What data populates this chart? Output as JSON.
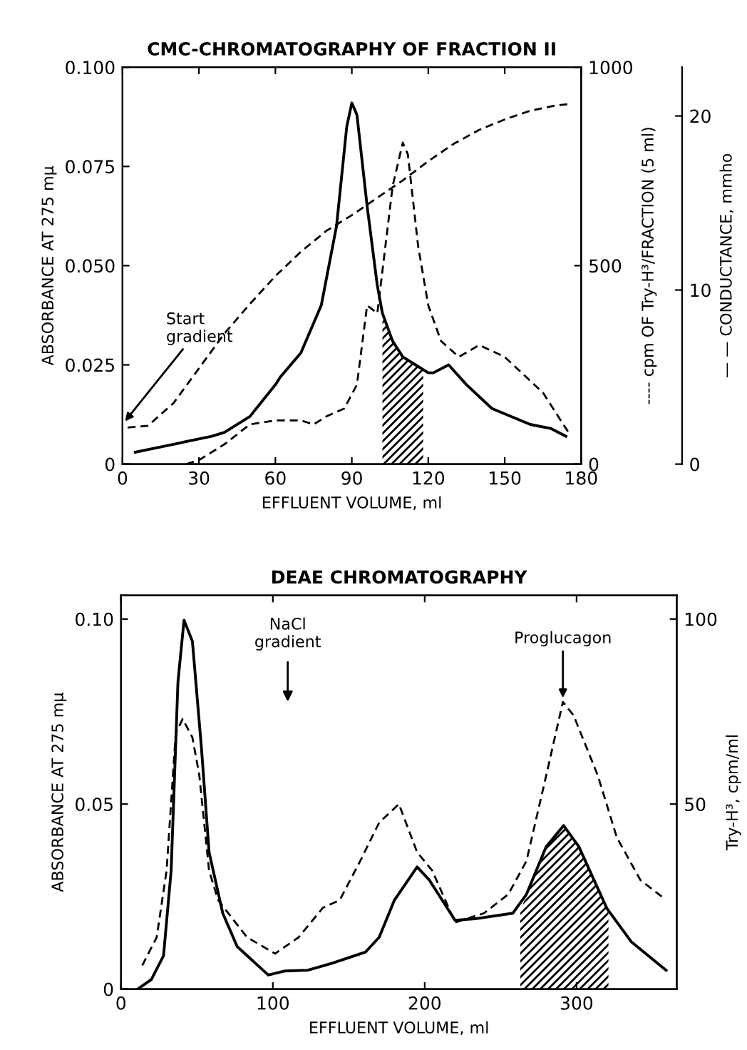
{
  "chart_data": [
    {
      "type": "line",
      "title": "CMC-CHROMATOGRAPHY OF FRACTION II",
      "xlabel": "EFFLUENT VOLUME, ml",
      "ylabel": "ABSORBANCE AT 275 mμ",
      "y2label": "---- cpm OF Try-H³/FRACTION (5 ml)",
      "y3label": "— — CONDUCTANCE, mmho",
      "xlim": [
        0,
        180
      ],
      "xticks": [
        0,
        30,
        60,
        90,
        120,
        150,
        180
      ],
      "ylim": [
        0,
        0.1
      ],
      "yticks": [
        0,
        {
          "value": 0.025,
          "label": "0.025"
        },
        {
          "value": 0.05,
          "label": "0.050"
        },
        {
          "value": 0.075,
          "label": "0.075"
        },
        {
          "value": 0.1,
          "label": "0.100"
        }
      ],
      "y2lim": [
        0,
        1000
      ],
      "y2ticks": [
        0,
        500,
        1000
      ],
      "y3lim": [
        0,
        22.8
      ],
      "y3ticks": [
        0,
        10,
        20
      ],
      "series": [
        {
          "color": "#000000",
          "line_style": "solid",
          "x": [
            5,
            20,
            35,
            40,
            50,
            60,
            62,
            70,
            78,
            84,
            88,
            90,
            92,
            96,
            100,
            102,
            106,
            110,
            115,
            120,
            122,
            128,
            135,
            145,
            160,
            168,
            174
          ],
          "values": [
            0.003,
            0.005,
            0.007,
            0.008,
            0.012,
            0.02,
            0.022,
            0.028,
            0.04,
            0.06,
            0.085,
            0.091,
            0.088,
            0.065,
            0.045,
            0.038,
            0.031,
            0.027,
            0.025,
            0.023,
            0.023,
            0.025,
            0.02,
            0.014,
            0.01,
            0.009,
            0.007
          ]
        },
        {
          "color": "#000000",
          "line_style": "dashed",
          "axis": "y2",
          "x": [
            25,
            30,
            40,
            50,
            60,
            70,
            75,
            80,
            87,
            92,
            96,
            100,
            106,
            110,
            112,
            116,
            120,
            125,
            132,
            140,
            150,
            165,
            175
          ],
          "values": [
            0,
            10,
            50,
            100,
            110,
            110,
            100,
            120,
            140,
            200,
            400,
            380,
            700,
            810,
            780,
            550,
            400,
            310,
            270,
            300,
            270,
            180,
            80
          ]
        },
        {
          "color": "#000000",
          "line_style": "dashed",
          "axis": "y3",
          "x": [
            2,
            10,
            20,
            30,
            40,
            50,
            60,
            70,
            80,
            90,
            100,
            110,
            120,
            130,
            140,
            150,
            160,
            170,
            176
          ],
          "values": [
            2.1,
            2.2,
            3.5,
            5.5,
            7.5,
            9.2,
            10.8,
            12.2,
            13.4,
            14.3,
            15.3,
            16.3,
            17.4,
            18.4,
            19.2,
            19.8,
            20.3,
            20.6,
            20.7
          ]
        },
        {
          "type": "area",
          "color": "#000000",
          "x": [
            102,
            106,
            110,
            115,
            118
          ],
          "values": [
            0.038,
            0.031,
            0.027,
            0.025,
            0.0237
          ]
        }
      ],
      "annotations": [
        {
          "text": "Start\ngradient",
          "x": 0,
          "y": 0.01
        }
      ]
    },
    {
      "type": "line",
      "title": "DEAE CHROMATOGRAPHY",
      "xlabel": "EFFLUENT VOLUME, ml",
      "ylabel": "ABSORBANCE AT 275 mμ",
      "y2label": "Try-H³, cpm/ml",
      "xlim": [
        0,
        366
      ],
      "xticks": [
        0,
        100,
        200,
        300
      ],
      "ylim": [
        0,
        0.1064
      ],
      "yticks": [
        0,
        0.05,
        {
          "value": 0.1,
          "label": "0.10"
        }
      ],
      "y2lim": [
        0,
        106.4
      ],
      "y2ticks": [
        50,
        100
      ],
      "series": [
        {
          "color": "#000000",
          "line_style": "solid",
          "x": [
            11,
            20,
            28,
            33,
            37.5,
            41.5,
            47,
            53,
            58,
            67,
            76.5,
            97,
            108,
            123,
            139,
            161,
            170,
            180,
            195,
            203,
            220,
            233,
            258,
            267,
            280,
            291.5,
            301.5,
            320,
            336,
            359
          ],
          "values": [
            0,
            0.0026,
            0.009,
            0.032,
            0.083,
            0.0997,
            0.094,
            0.065,
            0.037,
            0.0205,
            0.0115,
            0.0038,
            0.0049,
            0.0051,
            0.007,
            0.01,
            0.014,
            0.024,
            0.033,
            0.0295,
            0.0186,
            0.019,
            0.0205,
            0.0256,
            0.0385,
            0.0442,
            0.0385,
            0.0218,
            0.0128,
            0.0051
          ]
        },
        {
          "color": "#000000",
          "line_style": "dashed",
          "axis": "y2",
          "x": [
            14,
            23.5,
            30,
            36,
            40.6,
            47,
            51.5,
            58,
            64,
            83,
            101.5,
            117,
            133,
            144,
            158,
            170,
            183,
            195,
            205,
            220,
            239,
            255,
            267,
            280,
            291,
            298,
            314,
            326.5,
            342,
            358
          ],
          "values": [
            6.4,
            14,
            32,
            69,
            73,
            68,
            58,
            32,
            24,
            14,
            9.6,
            14,
            22,
            24,
            35,
            45,
            50,
            37,
            32,
            18,
            20.5,
            25.6,
            34.6,
            57.7,
            77.6,
            74,
            57.7,
            41,
            29.5,
            24.4
          ]
        },
        {
          "type": "area",
          "color": "#000000",
          "x": [
            263,
            267,
            280,
            291.5,
            301.5,
            320,
            321
          ],
          "values": [
            0.021,
            0.0256,
            0.0385,
            0.0442,
            0.0385,
            0.0218,
            0.021
          ]
        }
      ],
      "annotations": [
        "NaCl\ngradient",
        {
          "text": "Proglucagon",
          "x": 291,
          "y": 0.0776
        }
      ]
    }
  ]
}
